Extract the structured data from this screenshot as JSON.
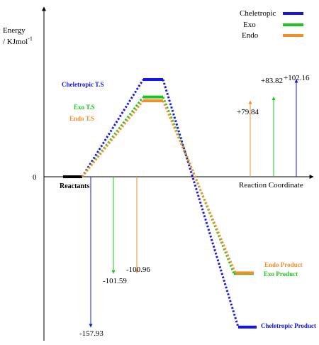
{
  "chart_data": {
    "type": "line",
    "ylabel_line1": "Energy",
    "ylabel_line2": "/ KJmol",
    "ylabel_sup": "-1",
    "xlabel": "Reaction Coordinate",
    "zero_label": "0",
    "reactants_label": "Reactants",
    "ylim": [
      -175,
      175
    ],
    "states": [
      "Reactants",
      "Transition State",
      "Product"
    ],
    "series": [
      {
        "name": "Cheletropic",
        "color": "#1515e6",
        "ts_label": "Cheletropic T.S",
        "product_label": "Cheletropic Product",
        "ts_energy": 102.16,
        "product_energy": -157.93,
        "ts_value_label": "+102.16",
        "product_value_label": "-157.93"
      },
      {
        "name": "Exo",
        "color": "#1ec41e",
        "ts_label": "Exo T.S",
        "product_label": "Exo Product",
        "ts_energy": 83.82,
        "product_energy": -101.59,
        "ts_value_label": "+83.82",
        "product_value_label": "-101.59"
      },
      {
        "name": "Endo",
        "color": "#f0902a",
        "ts_label": "Endo T.S",
        "product_label": "Endo Product",
        "ts_energy": 79.84,
        "product_energy": -100.96,
        "ts_value_label": "+79.84",
        "product_value_label": "-100.96"
      }
    ]
  }
}
